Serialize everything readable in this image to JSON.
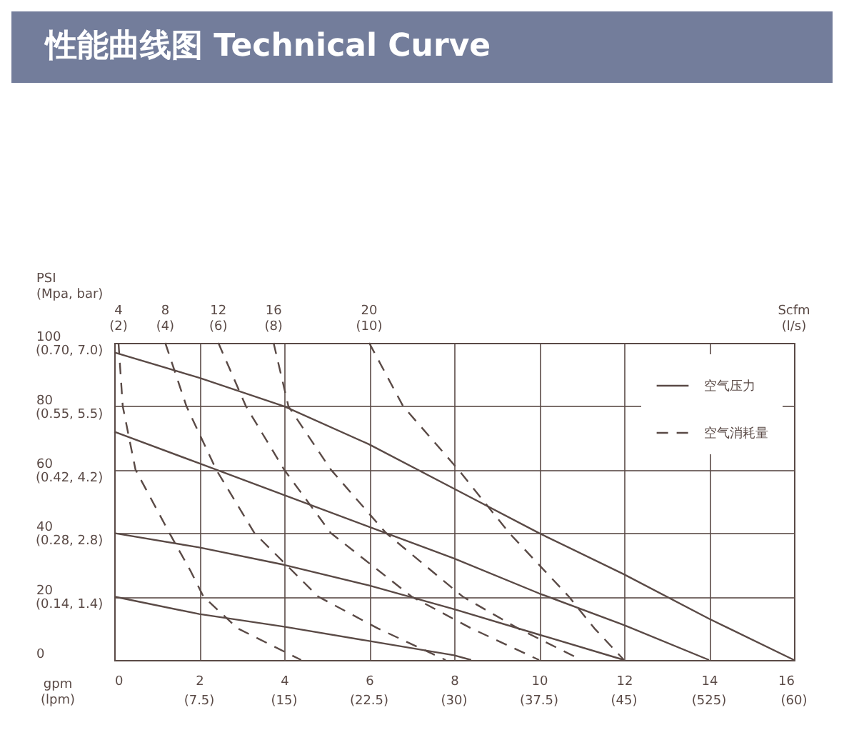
{
  "chart_data": {
    "type": "line",
    "title": "性能曲线图 Technical Curve",
    "xlabel": "gpm (lpm)",
    "ylabel": "PSI (Mpa, bar)",
    "xlim": [
      0,
      16
    ],
    "ylim": [
      0,
      100
    ],
    "xticks": [
      0,
      2,
      4,
      6,
      8,
      10,
      12,
      14,
      16
    ],
    "yticks": [
      0,
      20,
      40,
      60,
      80,
      100
    ],
    "grid": true,
    "legend": "top right",
    "series": [
      {
        "name": "空气压力",
        "color": "#5a4a46",
        "line_style": "solid",
        "x": [
          0,
          2,
          4,
          6,
          8,
          10,
          12,
          14,
          16
        ],
        "values": [
          97,
          89,
          80,
          68,
          54,
          40,
          27,
          13,
          0
        ]
      },
      {
        "color": "#5a4a46",
        "line_style": "solid",
        "x": [
          0,
          2,
          4,
          6,
          8,
          10,
          12,
          14
        ],
        "values": [
          72,
          62,
          52,
          42,
          32,
          21,
          11,
          0
        ]
      },
      {
        "color": "#5a4a46",
        "line_style": "solid",
        "x": [
          0,
          2,
          4,
          6,
          8,
          10,
          12
        ],
        "values": [
          40,
          35.5,
          30,
          23.5,
          16,
          8,
          0
        ]
      },
      {
        "color": "#5a4a46",
        "line_style": "solid",
        "x": [
          0,
          2,
          4,
          6,
          8,
          8.4
        ],
        "values": [
          20,
          14.5,
          10.5,
          6,
          1.5,
          0
        ]
      },
      {
        "name": "空气消耗量",
        "color": "#5a4a46",
        "line_style": "dashed",
        "x": [
          0.1,
          0.2,
          0.5,
          1.3,
          1.8,
          2.1,
          2.9,
          4.4
        ],
        "values": [
          100,
          80,
          60,
          40,
          28,
          20,
          10,
          0
        ]
      },
      {
        "color": "#5a4a46",
        "line_style": "dashed",
        "x": [
          1.2,
          1.7,
          2.4,
          3.3,
          4.8,
          6.2,
          7.8
        ],
        "values": [
          100,
          80,
          60,
          40,
          20,
          10,
          0
        ]
      },
      {
        "color": "#5a4a46",
        "line_style": "dashed",
        "x": [
          2.45,
          3.1,
          4.0,
          5.1,
          7.0,
          8.4,
          10.0
        ],
        "values": [
          100,
          80,
          60,
          40,
          20,
          10,
          0
        ]
      },
      {
        "color": "#5a4a46",
        "line_style": "dashed",
        "x": [
          3.75,
          4.1,
          5.1,
          6.4,
          8.2,
          9.5,
          11.0
        ],
        "values": [
          100,
          80,
          60,
          40,
          20,
          10,
          0
        ]
      },
      {
        "color": "#5a4a46",
        "line_style": "dashed",
        "x": [
          6.0,
          6.8,
          8.1,
          9.3,
          10.7,
          11.3,
          12.0
        ],
        "values": [
          100,
          80,
          60,
          40,
          20,
          10,
          0
        ]
      }
    ],
    "annotations": [
      {
        "text": "4 (2)",
        "x": 0.1,
        "y": 100
      },
      {
        "text": "8 (4)",
        "x": 1.2,
        "y": 100
      },
      {
        "text": "12 (6)",
        "x": 2.45,
        "y": 100
      },
      {
        "text": "16 (8)",
        "x": 3.75,
        "y": 100
      },
      {
        "text": "20 (10)",
        "x": 6.0,
        "y": 100
      },
      "Scfm (l/s)",
      "(0.14, 1.4)",
      "(0.28, 2.8)",
      "(0.42, 4.2)",
      "(0.55, 5.5)",
      "(0.70, 7.0)",
      "(7.5)",
      "(15)",
      "(22.5)",
      "(30)",
      "(37.5)",
      "(45)",
      "(525)",
      "(60)"
    ]
  }
}
